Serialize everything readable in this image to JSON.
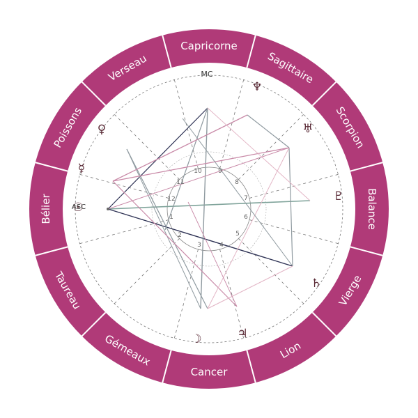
{
  "colors": {
    "ring": "#b03a78",
    "ring_divider": "#ffffff",
    "aspect_pink": "#c98aa8",
    "aspect_light_pink": "#e3b6c6",
    "aspect_gray": "#8f9aa0",
    "aspect_green": "#7fa39a",
    "aspect_navy": "#2f3355"
  },
  "signs": [
    {
      "name": "Capricorne",
      "icon": "capricorn"
    },
    {
      "name": "Sagittaire",
      "icon": "sagittarius"
    },
    {
      "name": "Scorpion",
      "icon": "scorpio"
    },
    {
      "name": "Balance",
      "icon": "libra"
    },
    {
      "name": "Vierge",
      "icon": "virgo"
    },
    {
      "name": "Lion",
      "icon": "leo"
    },
    {
      "name": "Cancer",
      "icon": "cancer"
    },
    {
      "name": "Gémeaux",
      "icon": "gemini"
    },
    {
      "name": "Taureau",
      "icon": "taurus"
    },
    {
      "name": "Bélier",
      "icon": "aries"
    },
    {
      "name": "Poissons",
      "icon": "pisces"
    },
    {
      "name": "Verseau",
      "icon": "aquarius"
    }
  ],
  "axes": {
    "mc": "MC",
    "asc": "ASC"
  },
  "planets": [
    {
      "glyph": "♆",
      "icon": "neptune-icon"
    },
    {
      "glyph": "♅",
      "icon": "uranus-icon"
    },
    {
      "glyph": "♇",
      "icon": "pluto-icon"
    },
    {
      "glyph": "♄",
      "icon": "saturn-icon"
    },
    {
      "glyph": "♃",
      "icon": "jupiter-icon"
    },
    {
      "glyph": "☽",
      "icon": "moon-icon"
    },
    {
      "glyph": "☉",
      "icon": "sun-icon"
    },
    {
      "glyph": "☿",
      "icon": "mercury-icon"
    },
    {
      "glyph": "♀",
      "icon": "venus-icon"
    }
  ],
  "houses": [
    "1",
    "2",
    "3",
    "4",
    "5",
    "6",
    "7",
    "8",
    "9",
    "10",
    "11",
    "12"
  ]
}
